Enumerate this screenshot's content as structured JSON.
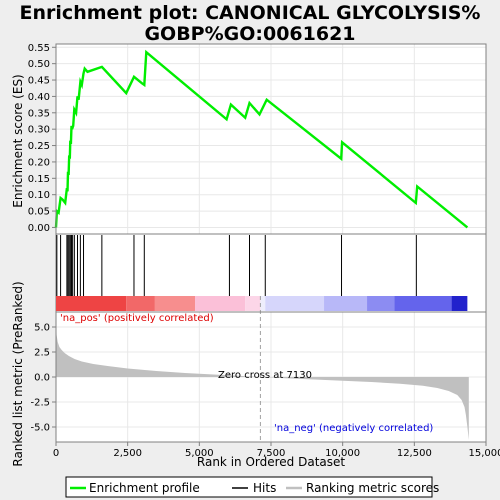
{
  "chart_data": [
    {
      "type": "line",
      "title": "Enrichment plot: CANONICAL GLYCOLYSIS%",
      "subtitle": "GOBP%GO:0061621",
      "ylabel": "Enrichment score (ES)",
      "ylim": [
        -0.02,
        0.56
      ],
      "yticks": [
        "0.00",
        "0.05",
        "0.10",
        "0.15",
        "0.20",
        "0.25",
        "0.30",
        "0.35",
        "0.40",
        "0.45",
        "0.50",
        "0.55"
      ],
      "ytick_values": [
        0,
        0.05,
        0.1,
        0.15,
        0.2,
        0.25,
        0.3,
        0.35,
        0.4,
        0.45,
        0.5,
        0.55
      ],
      "xlim": [
        0,
        15000
      ],
      "grid": true,
      "series": [
        {
          "name": "Enrichment profile",
          "color": "#00ee00",
          "x": [
            0,
            30,
            90,
            160,
            230,
            320,
            380,
            400,
            420,
            440,
            460,
            480,
            500,
            520,
            540,
            560,
            580,
            600,
            640,
            700,
            750,
            790,
            850,
            900,
            960,
            1000,
            1100,
            1600,
            2450,
            2720,
            3000,
            3080,
            3150,
            5950,
            6100,
            6600,
            6750,
            7100,
            7350,
            9950,
            9980,
            12550,
            12600,
            14350
          ],
          "y": [
            0.0,
            0.05,
            0.045,
            0.09,
            0.085,
            0.075,
            0.12,
            0.11,
            0.17,
            0.16,
            0.22,
            0.21,
            0.265,
            0.255,
            0.31,
            0.3,
            0.305,
            0.31,
            0.36,
            0.35,
            0.4,
            0.39,
            0.445,
            0.435,
            0.47,
            0.485,
            0.475,
            0.49,
            0.41,
            0.46,
            0.44,
            0.435,
            0.535,
            0.33,
            0.375,
            0.335,
            0.38,
            0.345,
            0.39,
            0.21,
            0.26,
            0.075,
            0.125,
            0.0
          ]
        }
      ]
    },
    {
      "type": "rug",
      "name": "Hits",
      "hits": [
        30,
        160,
        380,
        420,
        460,
        500,
        540,
        580,
        640,
        750,
        850,
        960,
        1600,
        2720,
        3080,
        6050,
        6750,
        7300,
        9960,
        12570
      ]
    },
    {
      "type": "area",
      "name": "Ranking metric scores",
      "ylabel": "Ranked list metric (PreRanked)",
      "xlabel": "Rank in Ordered Dataset",
      "xticks": [
        "0",
        "2,500",
        "5,000",
        "7,500",
        "10,000",
        "12,500",
        "15,000"
      ],
      "xtick_values": [
        0,
        2500,
        5000,
        7500,
        10000,
        12500,
        15000
      ],
      "yticks": [
        "5.0",
        "2.5",
        "0.0",
        "-2.5",
        "-5.0"
      ],
      "ytick_values": [
        5,
        2.5,
        0,
        -2.5,
        -5
      ],
      "ylim": [
        -6.5,
        6.5
      ],
      "x": [
        0,
        20,
        60,
        120,
        200,
        300,
        450,
        650,
        900,
        1300,
        1800,
        2500,
        3500,
        4500,
        5500,
        6500,
        7130,
        8000,
        9000,
        10000,
        11000,
        12000,
        12800,
        13300,
        13700,
        14000,
        14150,
        14250,
        14300,
        14350,
        14400
      ],
      "values": [
        5.8,
        4.2,
        3.5,
        3.0,
        2.7,
        2.4,
        2.1,
        1.8,
        1.55,
        1.3,
        1.1,
        0.85,
        0.6,
        0.4,
        0.25,
        0.1,
        0.0,
        -0.12,
        -0.25,
        -0.38,
        -0.5,
        -0.68,
        -0.88,
        -1.1,
        -1.4,
        -1.8,
        -2.3,
        -3.0,
        -3.8,
        -5.0,
        -6.3
      ],
      "color": "#c0c0c0",
      "zero_cross_label": "Zero cross at 7130",
      "zero_cross": 7130,
      "pos_label": "'na_pos' (positively correlated)",
      "neg_label": "'na_neg' (negatively correlated)",
      "pos_color": "#dd0000",
      "neg_color": "#0000dd"
    }
  ],
  "colorbar": [
    {
      "from": 0,
      "to": 2450,
      "color": "#ee4444"
    },
    {
      "from": 2450,
      "to": 3450,
      "color": "#f26868"
    },
    {
      "from": 3450,
      "to": 4850,
      "color": "#f78e8e"
    },
    {
      "from": 4850,
      "to": 6600,
      "color": "#fbc0d8"
    },
    {
      "from": 6600,
      "to": 7130,
      "color": "#fcd6e8"
    },
    {
      "from": 7130,
      "to": 7300,
      "color": "#eeeefc"
    },
    {
      "from": 7300,
      "to": 9350,
      "color": "#d6d6fb"
    },
    {
      "from": 9350,
      "to": 10850,
      "color": "#b8b8f8"
    },
    {
      "from": 10850,
      "to": 11800,
      "color": "#8c8cf2"
    },
    {
      "from": 11800,
      "to": 13800,
      "color": "#6464ec"
    },
    {
      "from": 13800,
      "to": 14350,
      "color": "#2222cc"
    }
  ],
  "legend": [
    {
      "label": "Enrichment profile",
      "color": "#00ee00",
      "icon": "green-line-icon"
    },
    {
      "label": "Hits",
      "color": "#000000",
      "icon": "black-line-icon"
    },
    {
      "label": "Ranking metric scores",
      "color": "#c0c0c0",
      "icon": "gray-line-icon"
    }
  ]
}
